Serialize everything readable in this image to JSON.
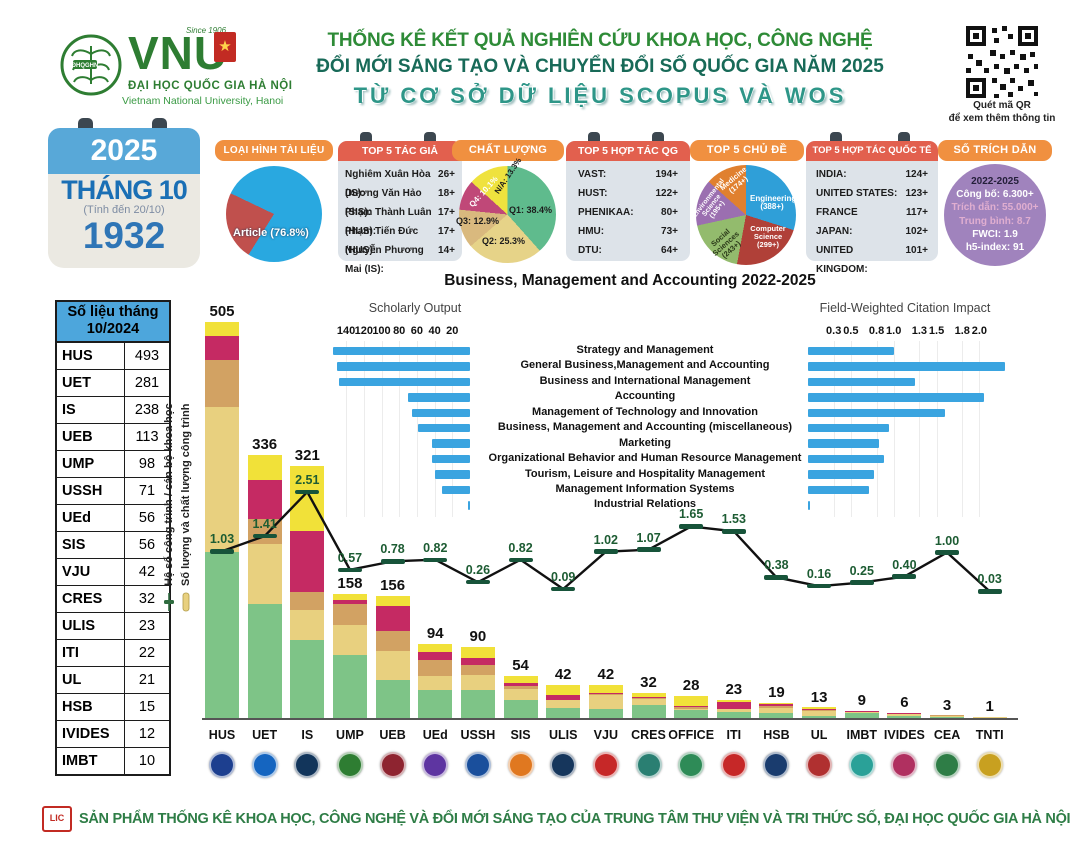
{
  "header": {
    "logo": {
      "word": "VNU",
      "since": "Since 1906",
      "emblem": "ĐHQGHN",
      "org_vi": "ĐẠI HỌC QUỐC GIA HÀ NỘI",
      "org_en": "Vietnam National University, Hanoi",
      "medal_star": "★"
    },
    "title1": "THỐNG KÊ KẾT QUẢ NGHIÊN CỨU KHOA HỌC, CÔNG NGHỆ",
    "title2": "ĐỔI MỚI SÁNG TẠO VÀ CHUYỂN ĐỔI SỐ QUỐC GIA NĂM 2025",
    "title3": "TỪ CƠ SỞ DỮ LIỆU SCOPUS VÀ WOS",
    "qr": {
      "line1": "Quét mã QR",
      "line2": "để xem thêm thông tin"
    }
  },
  "calendar": {
    "year": "2025",
    "month": "THÁNG 10",
    "note": "(Tính đến 20/10)",
    "count": "1932"
  },
  "cards": {
    "doc_type": {
      "title": "LOẠI HÌNH TÀI LIỆU",
      "main_label": "Article (76.8%)",
      "article_pct": 76.8,
      "colors": {
        "article": "#29a8e0",
        "other": "#c0504d"
      }
    },
    "top_authors": {
      "title": "TOP 5 TÁC GIẢ",
      "rows": [
        {
          "name": "Nghiêm Xuân Hòa (IS):",
          "value": "26+"
        },
        {
          "name": "Dương Văn Hảo (SIS):",
          "value": "18+"
        },
        {
          "name": "Phạm Thành Luân (HUS):",
          "value": "17+"
        },
        {
          "name": "Phạm Tiến Đức (HUS):",
          "value": "17+"
        },
        {
          "name": "Nguyễn Phương Mai (IS):",
          "value": "14+"
        }
      ]
    },
    "quality": {
      "title": "CHẤT LƯỢNG",
      "slices": [
        {
          "label": "Q1: 38.4%",
          "value": 38.4,
          "color": "#5fbb8d"
        },
        {
          "label": "Q2: 25.3%",
          "value": 25.3,
          "color": "#e6d388"
        },
        {
          "label": "Q3: 12.9%",
          "value": 12.9,
          "color": "#d9b97e"
        },
        {
          "label": "Q4: 10.1%",
          "value": 10.1,
          "color": "#c04878"
        },
        {
          "label": "N/A: 13.3%",
          "value": 13.3,
          "color": "#efe23e"
        }
      ]
    },
    "top_domestic": {
      "title": "TOP 5 HỢP TÁC QG",
      "rows": [
        {
          "name": "VAST:",
          "value": "194+"
        },
        {
          "name": "HUST:",
          "value": "122+"
        },
        {
          "name": "PHENIKAA:",
          "value": "80+"
        },
        {
          "name": "HMU:",
          "value": "73+"
        },
        {
          "name": "DTU:",
          "value": "64+"
        }
      ]
    },
    "top_subjects": {
      "title": "TOP 5 CHỦ ĐỀ",
      "slices": [
        {
          "label": "Engineering",
          "count": "(388+)",
          "value": 388,
          "color": "#2f9fd8"
        },
        {
          "label": "Computer Science",
          "count": "(299+)",
          "value": 299,
          "color": "#b04038"
        },
        {
          "label": "Social Sciences",
          "count": "(243+)",
          "value": 243,
          "color": "#93bb6d"
        },
        {
          "label": "Environmental Science",
          "count": "(195+)",
          "value": 195,
          "color": "#9b6fb0"
        },
        {
          "label": "Medicine",
          "count": "(174+)",
          "value": 174,
          "color": "#e0802f"
        }
      ]
    },
    "top_international": {
      "title": "TOP 5 HỢP TÁC QUỐC TẾ",
      "rows": [
        {
          "name": "INDIA:",
          "value": "124+"
        },
        {
          "name": "UNITED STATES:",
          "value": "123+"
        },
        {
          "name": "FRANCE",
          "value": "117+"
        },
        {
          "name": "JAPAN:",
          "value": "102+"
        },
        {
          "name": "UNITED KINGDOM:",
          "value": "101+"
        }
      ]
    },
    "citations": {
      "title": "SỐ TRÍCH DẪN",
      "lines": [
        {
          "text": "2022-2025",
          "tone": "dark"
        },
        {
          "text": "Công bố: 6.300+",
          "tone": "white"
        },
        {
          "text": "Trích dẫn: 55.000+",
          "tone": "pink"
        },
        {
          "text": "Trung bình: 8.7",
          "tone": "pink"
        },
        {
          "text": "FWCI: 1.9",
          "tone": "white"
        },
        {
          "text": "h5-index: 91",
          "tone": "white"
        }
      ]
    }
  },
  "side_table": {
    "header1": "Số liệu tháng",
    "header2": "10/2024",
    "rows": [
      {
        "name": "HUS",
        "value": 493
      },
      {
        "name": "UET",
        "value": 281
      },
      {
        "name": "IS",
        "value": 238
      },
      {
        "name": "UEB",
        "value": 113
      },
      {
        "name": "UMP",
        "value": 98
      },
      {
        "name": "USSH",
        "value": 71
      },
      {
        "name": "UEd",
        "value": 56
      },
      {
        "name": "SIS",
        "value": 56
      },
      {
        "name": "VJU",
        "value": 42
      },
      {
        "name": "CRES",
        "value": 32
      },
      {
        "name": "ULIS",
        "value": 23
      },
      {
        "name": "ITI",
        "value": 22
      },
      {
        "name": "UL",
        "value": 21
      },
      {
        "name": "HSB",
        "value": 15
      },
      {
        "name": "IVIDES",
        "value": 12
      },
      {
        "name": "IMBT",
        "value": 10
      }
    ]
  },
  "main": {
    "chart_title": "Business, Management and Accounting 2022-2025",
    "legend": [
      {
        "label": "Hệ số công trình / cán bộ khoa học",
        "marker": "line"
      },
      {
        "label": "Số lượng và chất lượng công trình",
        "marker": "bar"
      }
    ]
  },
  "chart_data": [
    {
      "type": "bar",
      "subtype": "stacked-with-line",
      "title": "Business, Management and Accounting 2022-2025",
      "categories": [
        "HUS",
        "UET",
        "IS",
        "UMP",
        "UEB",
        "UEd",
        "USSH",
        "SIS",
        "ULIS",
        "VJU",
        "CRES",
        "OFFICE",
        "ITI",
        "HSB",
        "UL",
        "IMBT",
        "IVIDES",
        "CEA",
        "TNTI"
      ],
      "totals": [
        505,
        336,
        321,
        158,
        156,
        94,
        90,
        54,
        42,
        42,
        32,
        28,
        23,
        19,
        13,
        9,
        6,
        3,
        1
      ],
      "line_series": {
        "name": "Hệ số công trình / cán bộ khoa học",
        "values": [
          1.03,
          1.41,
          2.51,
          0.57,
          0.78,
          0.82,
          0.26,
          0.82,
          0.09,
          1.02,
          1.07,
          1.65,
          1.53,
          0.38,
          0.16,
          0.25,
          0.4,
          1.0,
          0.03
        ]
      },
      "segment_colors": [
        "#7ec487",
        "#e8d07f",
        "#d2a263",
        "#c52a63",
        "#f1e139"
      ],
      "segments": [
        [
          212,
          184,
          61,
          30,
          18
        ],
        [
          145,
          77,
          32,
          49,
          33
        ],
        [
          100,
          38,
          23,
          77,
          83
        ],
        [
          80,
          38,
          28,
          4,
          8
        ],
        [
          48,
          38,
          25,
          32,
          13
        ],
        [
          36,
          18,
          20,
          10,
          10
        ],
        [
          36,
          19,
          12,
          10,
          13
        ],
        [
          23,
          14,
          4,
          4,
          9
        ],
        [
          13,
          10,
          0,
          6,
          13
        ],
        [
          12,
          17,
          2,
          1,
          10
        ],
        [
          16,
          8,
          2,
          1,
          5
        ],
        [
          10,
          2,
          2,
          1,
          13
        ],
        [
          8,
          3,
          0,
          9,
          3
        ],
        [
          6,
          7,
          2,
          3,
          1
        ],
        [
          2,
          7,
          1,
          1,
          2
        ],
        [
          6,
          2,
          0,
          1,
          0
        ],
        [
          2,
          3,
          0,
          1,
          0
        ],
        [
          1,
          1,
          1,
          0,
          0
        ],
        [
          0,
          1,
          0,
          0,
          0
        ]
      ],
      "logo_colors": [
        "#1d3f8f",
        "#1565c0",
        "#12355b",
        "#2e7d32",
        "#8e2430",
        "#5e35a1",
        "#1a4f9c",
        "#e07820",
        "#16365c",
        "#c62828",
        "#2a7f72",
        "#2e8b57",
        "#c62828",
        "#1a3c6e",
        "#b03030",
        "#2aa198",
        "#b03060",
        "#2e7d46",
        "#c8a020"
      ]
    },
    {
      "type": "bar",
      "orientation": "horizontal-right-to-left",
      "title": "Scholarly Output",
      "categories": [
        "Strategy and Management",
        "General Business,Management and Accounting",
        "Business and International Management",
        "Accounting",
        "Management of Technology and Innovation",
        "Business, Management and Accounting (miscellaneous)",
        "Marketing",
        "Organizational Behavior and Human Resource Management",
        "Tourism, Leisure and Hospitality Management",
        "Management Information Systems",
        "Industrial Relations"
      ],
      "values": [
        155,
        150,
        148,
        70,
        66,
        59,
        43,
        43,
        39,
        32,
        2
      ],
      "ticks": [
        140,
        120,
        100,
        80,
        60,
        40,
        20
      ],
      "bar_color": "#3aa4e0"
    },
    {
      "type": "bar",
      "orientation": "horizontal",
      "title": "Field-Weighted Citation Impact",
      "categories": [
        "Strategy and Management",
        "General Business,Management and Accounting",
        "Business and International Management",
        "Accounting",
        "Management of Technology and Innovation",
        "Business, Management and Accounting (miscellaneous)",
        "Marketing",
        "Organizational Behavior and Human Resource Management",
        "Tourism, Leisure and Hospitality Management",
        "Management Information Systems",
        "Industrial Relations"
      ],
      "values": [
        1.0,
        2.3,
        1.25,
        2.05,
        1.6,
        0.95,
        0.83,
        0.89,
        0.77,
        0.71,
        0.02
      ],
      "ticks": [
        0.3,
        0.5,
        0.8,
        1.0,
        1.3,
        1.5,
        1.8,
        2.0
      ],
      "bar_color": "#3aa4e0"
    }
  ],
  "footer": {
    "lic": "LIC",
    "text": "SẢN PHẨM THỐNG KÊ KHOA HỌC, CÔNG NGHỆ VÀ ĐỔI MỚI SÁNG TẠO CỦA TRUNG TÂM THƯ VIỆN VÀ TRI THỨC SỐ, ĐẠI HỌC QUỐC GIA HÀ NỘI"
  }
}
